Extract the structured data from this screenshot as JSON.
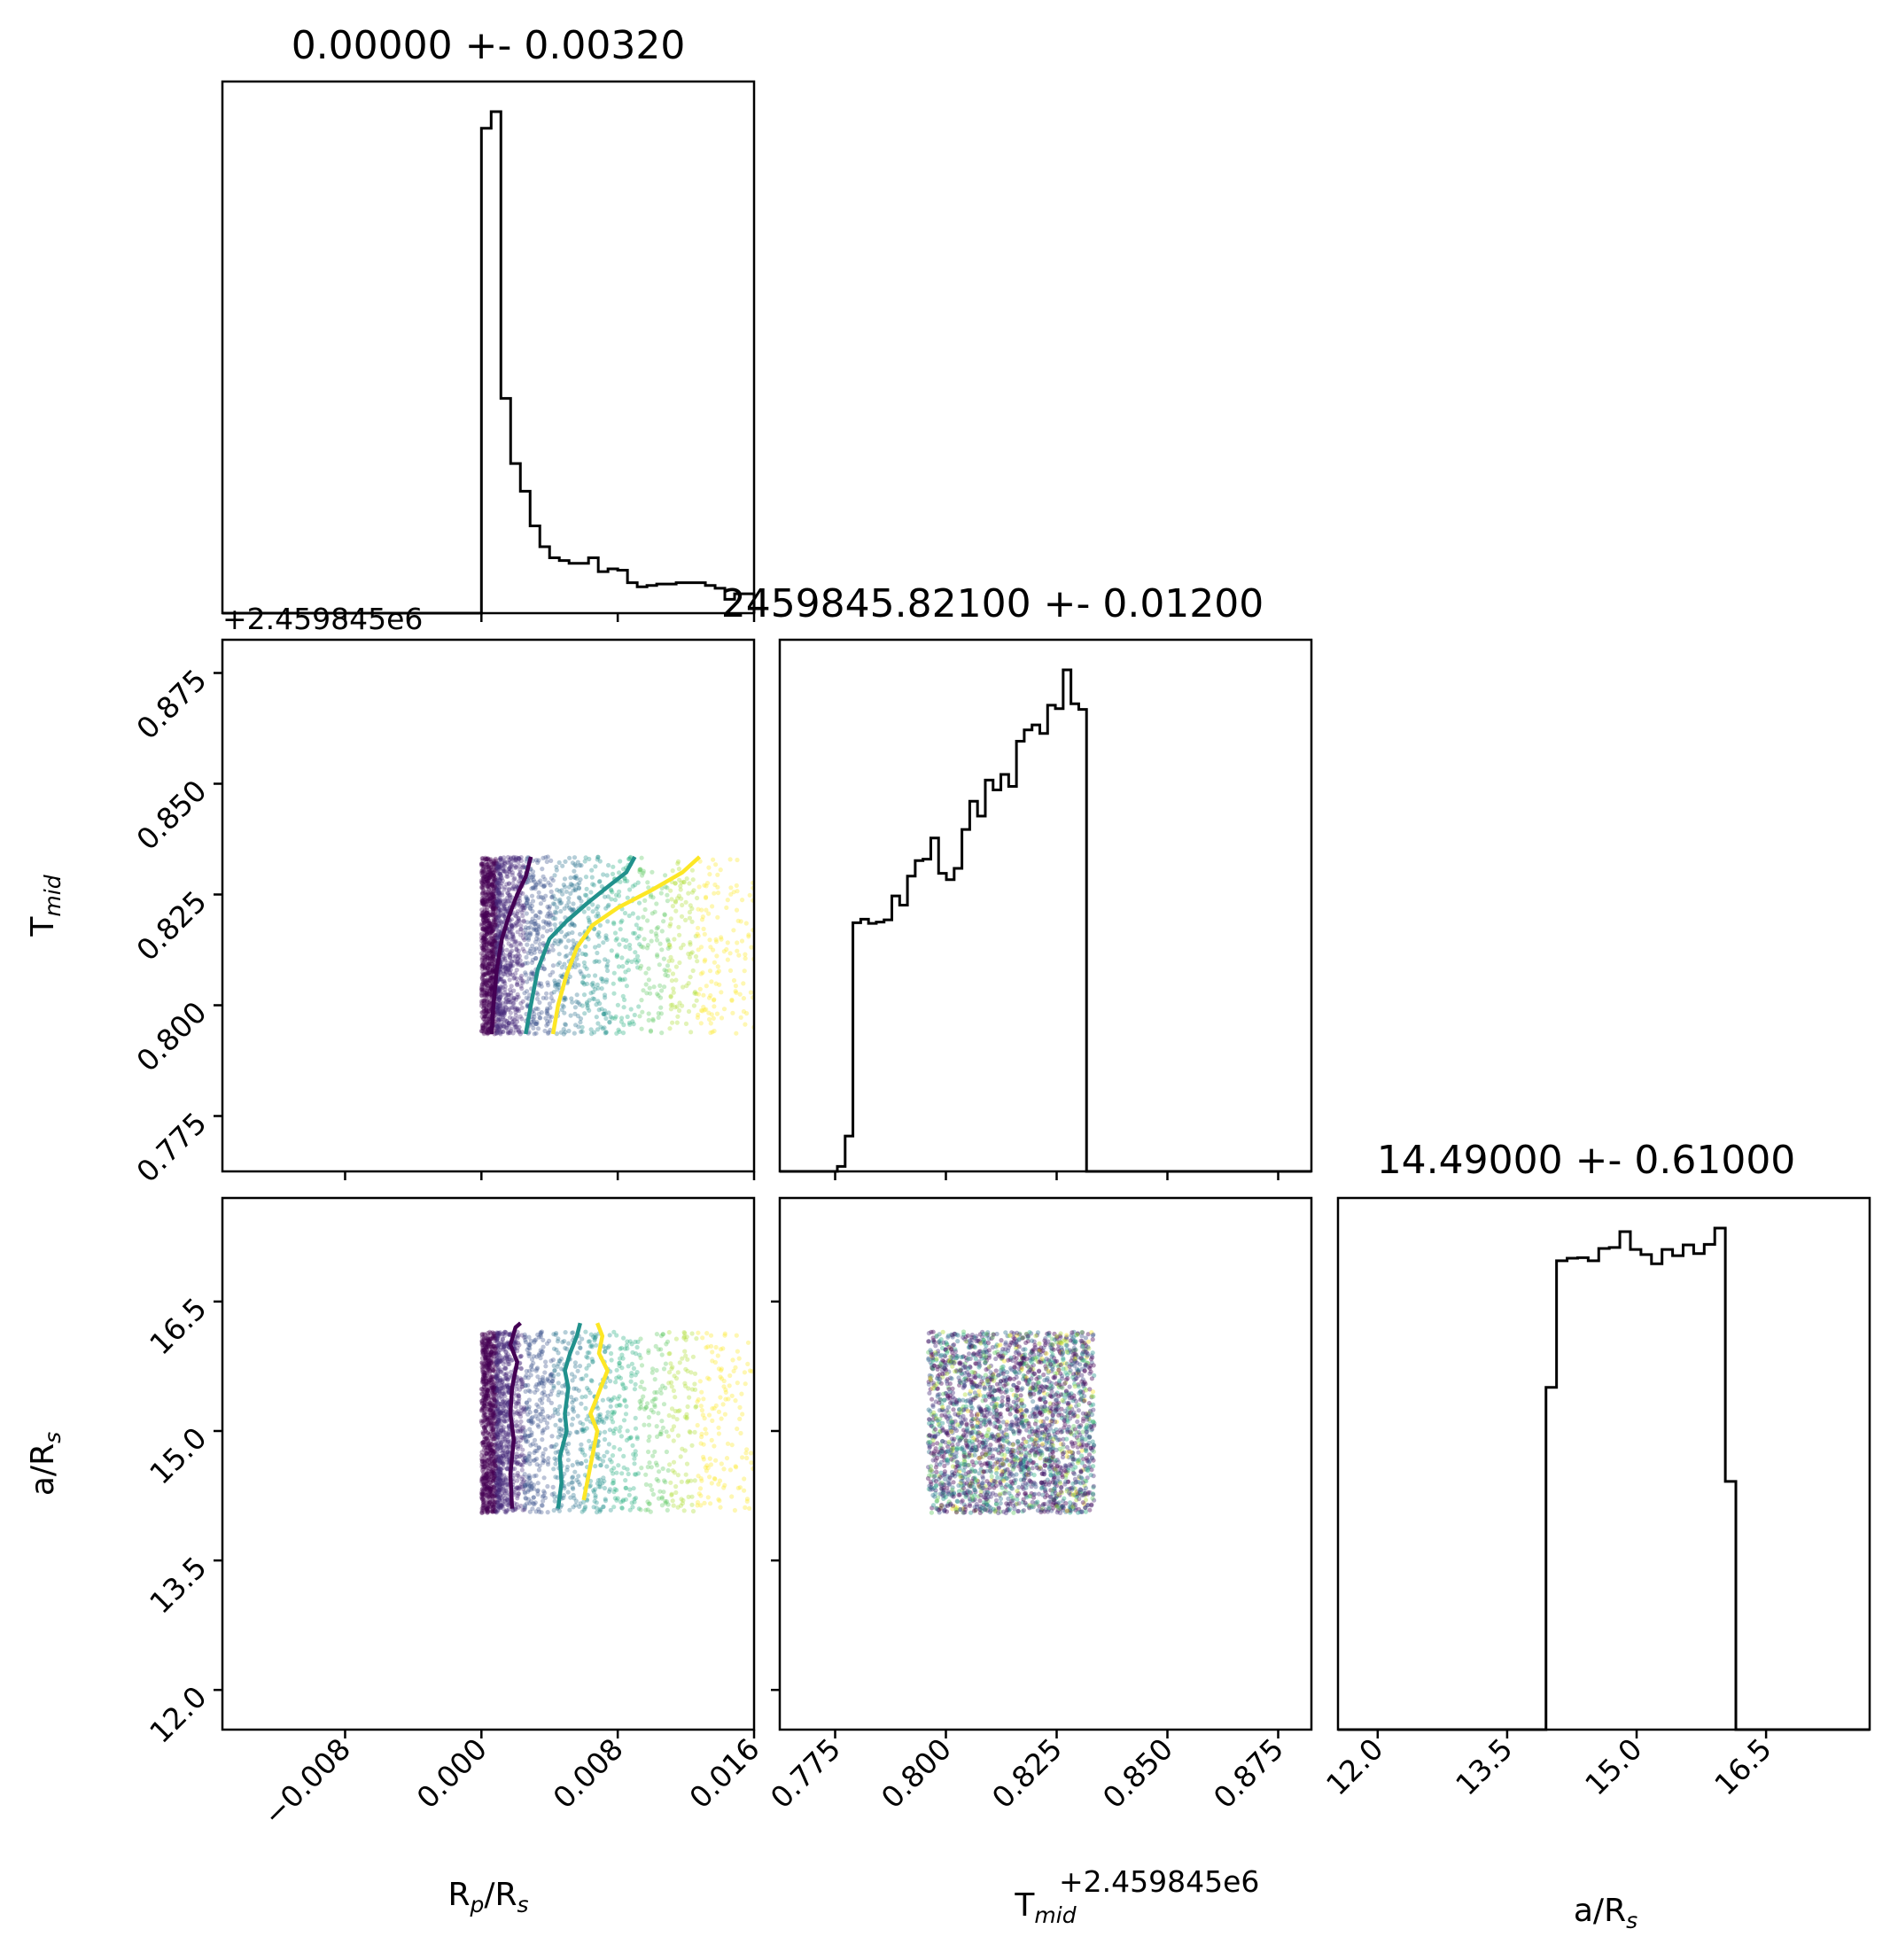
{
  "chart_data": {
    "type": "scatter",
    "titles": [
      "0.00000 +- 0.00320",
      "2459845.82100 +- 0.01200",
      "14.49000 +- 0.61000"
    ],
    "axis_offset": "+2.459845e6",
    "labels": {
      "x": [
        {
          "main": "R",
          "sub": "p",
          "rest": "/R",
          "sub2": "s"
        },
        {
          "main": "T",
          "sub": "mid",
          "rest": "",
          "sub2": ""
        },
        {
          "main": "a/R",
          "sub": "s",
          "rest": "",
          "sub2": ""
        }
      ],
      "y": [
        {
          "main": "T",
          "sub": "mid",
          "rest": "",
          "sub2": ""
        },
        {
          "main": "a/R",
          "sub": "s",
          "rest": "",
          "sub2": ""
        }
      ]
    },
    "ranges": {
      "rp": [
        -0.0152,
        0.016
      ],
      "tmid": [
        0.7625,
        0.8825
      ],
      "ars": [
        11.54,
        17.7
      ]
    },
    "ticks": {
      "rp": [
        -0.008,
        0.0,
        0.008,
        0.016
      ],
      "rp_labels": [
        "−0.008",
        "0.000",
        "0.008",
        "0.016"
      ],
      "tmid": [
        0.775,
        0.8,
        0.825,
        0.85,
        0.875
      ],
      "tmid_labels": [
        "0.775",
        "0.800",
        "0.825",
        "0.850",
        "0.875"
      ],
      "ars": [
        12.0,
        13.5,
        15.0,
        16.5
      ],
      "ars_labels": [
        "12.0",
        "13.5",
        "15.0",
        "16.5"
      ]
    },
    "hist_rp": {
      "edges_range": [
        0.0,
        0.016
      ],
      "counts": [
        350,
        362,
        155,
        108,
        88,
        63,
        48,
        40,
        38,
        36,
        36,
        40,
        30,
        32,
        31,
        22,
        19,
        20,
        21,
        21,
        22,
        22,
        22,
        20,
        18,
        10,
        14,
        14
      ]
    },
    "hist_tmid": {
      "edges_range": [
        0.7755,
        0.8335
      ],
      "counts": [
        7,
        50,
        352,
        357,
        351,
        353,
        356,
        390,
        377,
        418,
        440,
        442,
        472,
        422,
        413,
        429,
        484,
        524,
        503,
        554,
        540,
        562,
        545,
        609,
        625,
        632,
        620,
        660,
        655,
        710,
        662,
        654,
        0
      ]
    },
    "hist_ars": {
      "edges_range": [
        13.95,
        16.15
      ],
      "counts": [
        670,
        918,
        923,
        924,
        918,
        942,
        944,
        975,
        940,
        930,
        912,
        940,
        928,
        949,
        932,
        950,
        982,
        486
      ]
    },
    "contours": {
      "colors": [
        "#440154",
        "#21918c",
        "#fde725"
      ],
      "rp_tmid": [
        {
          "x": [
            0.0006,
            0.0007,
            0.0009,
            0.0012,
            0.0016,
            0.0021,
            0.0026,
            0.0029
          ],
          "y": [
            0.7935,
            0.8,
            0.808,
            0.815,
            0.82,
            0.825,
            0.829,
            0.8335
          ]
        },
        {
          "x": [
            0.0026,
            0.0029,
            0.0033,
            0.004,
            0.005,
            0.0062,
            0.0075,
            0.0085,
            0.009
          ],
          "y": [
            0.7935,
            0.8,
            0.808,
            0.815,
            0.819,
            0.823,
            0.827,
            0.83,
            0.8335
          ]
        },
        {
          "x": [
            0.0042,
            0.0045,
            0.005,
            0.0056,
            0.0065,
            0.008,
            0.01,
            0.0118,
            0.0128
          ],
          "y": [
            0.7935,
            0.8,
            0.807,
            0.813,
            0.818,
            0.822,
            0.826,
            0.83,
            0.8335
          ]
        }
      ],
      "rp_ars": [
        {
          "x": [
            0.0018,
            0.0017,
            0.0019,
            0.0017,
            0.0018,
            0.0021,
            0.0017,
            0.002,
            0.0023
          ],
          "y": [
            14.1,
            14.5,
            14.9,
            15.2,
            15.5,
            15.8,
            16.0,
            16.2,
            16.25
          ]
        },
        {
          "x": [
            0.0045,
            0.0047,
            0.0046,
            0.005,
            0.0049,
            0.0051,
            0.0049,
            0.0052,
            0.0056,
            0.0058
          ],
          "y": [
            14.1,
            14.4,
            14.7,
            15.0,
            15.2,
            15.5,
            15.7,
            15.9,
            16.1,
            16.25
          ]
        },
        {
          "x": [
            0.006,
            0.0063,
            0.0066,
            0.0068,
            0.0064,
            0.007,
            0.0074,
            0.0069,
            0.0071,
            0.0068
          ],
          "y": [
            14.2,
            14.5,
            14.8,
            15.0,
            15.2,
            15.5,
            15.7,
            15.9,
            16.1,
            16.25
          ]
        }
      ]
    }
  }
}
